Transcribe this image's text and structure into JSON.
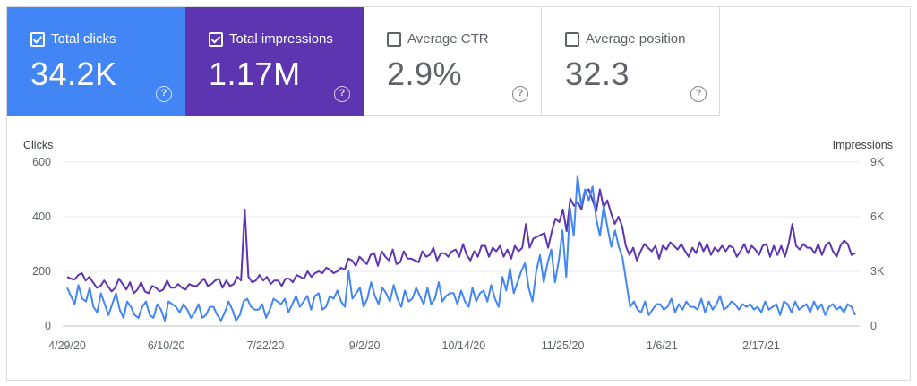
{
  "metrics": [
    {
      "label": "Total clicks",
      "value": "34.2K",
      "checked": true,
      "color": "#4285f4"
    },
    {
      "label": "Total impressions",
      "value": "1.17M",
      "checked": true,
      "color": "#5e35b1"
    },
    {
      "label": "Average CTR",
      "value": "2.9%",
      "checked": false,
      "color": "#ffffff"
    },
    {
      "label": "Average position",
      "value": "32.3",
      "checked": false,
      "color": "#ffffff"
    }
  ],
  "help_icon": "help-circle-icon",
  "chart_data": {
    "type": "line",
    "left_axis_title": "Clicks",
    "right_axis_title": "Impressions",
    "left_ticks": [
      "600",
      "400",
      "200",
      "0"
    ],
    "right_ticks": [
      "9K",
      "6K",
      "3K",
      "0"
    ],
    "left_ylim": [
      0,
      600
    ],
    "right_ylim": [
      0,
      9000
    ],
    "x_ticks": [
      "4/29/20",
      "6/10/20",
      "7/22/20",
      "9/2/20",
      "10/14/20",
      "11/25/20",
      "1/6/21",
      "2/17/21"
    ],
    "grid": true,
    "series": [
      {
        "axis": "right",
        "color": "#5e35b1",
        "values": [
          2700,
          2600,
          2550,
          2800,
          2900,
          2500,
          2700,
          2400,
          2100,
          2200,
          2500,
          2200,
          1900,
          2100,
          2600,
          2300,
          2000,
          2400,
          1800,
          2000,
          2400,
          1900,
          1800,
          2200,
          2100,
          1900,
          2000,
          2500,
          2100,
          2100,
          2300,
          2100,
          2000,
          2300,
          2200,
          2200,
          2400,
          2600,
          2200,
          2300,
          2500,
          2600,
          2100,
          2500,
          2200,
          2300,
          2700,
          2500,
          6400,
          2700,
          2400,
          2500,
          2800,
          2500,
          2700,
          2300,
          2500,
          2500,
          2200,
          2600,
          2600,
          2400,
          2800,
          2700,
          2600,
          3000,
          2700,
          2900,
          3000,
          2900,
          3200,
          3100,
          2900,
          3000,
          3200,
          3100,
          3700,
          3600,
          3300,
          3800,
          3600,
          3400,
          3900,
          4000,
          3300,
          4100,
          3800,
          3600,
          4200,
          3400,
          3500,
          4100,
          3700,
          3700,
          3600,
          3500,
          4100,
          3800,
          3900,
          4300,
          3600,
          4000,
          4000,
          3800,
          4100,
          4200,
          3800,
          4500,
          3900,
          3600,
          4100,
          3800,
          4400,
          4400,
          3800,
          4300,
          4100,
          4400,
          3800,
          4200,
          3700,
          4400,
          4100,
          4300,
          5600,
          4300,
          4800,
          4900,
          5000,
          5100,
          4300,
          5200,
          5900,
          5700,
          6400,
          5200,
          7000,
          6600,
          6800,
          6400,
          7400,
          7500,
          6900,
          6300,
          7500,
          6500,
          6900,
          6200,
          5600,
          6000,
          5500,
          4400,
          3900,
          4300,
          3600,
          4100,
          4500,
          4300,
          4100,
          4400,
          3700,
          4400,
          4200,
          4600,
          4400,
          4200,
          4500,
          4100,
          3800,
          4300,
          4000,
          4600,
          4100,
          4500,
          3900,
          4300,
          4100,
          4400,
          4100,
          4400,
          4300,
          3800,
          4100,
          4500,
          4000,
          4400,
          4200,
          3900,
          4400,
          4500,
          3800,
          4400,
          3900,
          4400,
          3800,
          4500,
          5600,
          4400,
          4200,
          4500,
          4300,
          4300,
          4000,
          4500,
          3900,
          4400,
          4600,
          4100,
          3800,
          4400,
          4700,
          4500,
          3900,
          4000
        ]
      },
      {
        "axis": "left",
        "color": "#4285f4",
        "values": [
          140,
          110,
          80,
          150,
          100,
          90,
          140,
          70,
          50,
          120,
          80,
          40,
          80,
          120,
          60,
          30,
          90,
          70,
          40,
          30,
          70,
          90,
          40,
          30,
          80,
          60,
          20,
          90,
          80,
          70,
          50,
          80,
          60,
          30,
          50,
          80,
          30,
          40,
          70,
          70,
          40,
          20,
          50,
          90,
          60,
          20,
          40,
          90,
          100,
          70,
          60,
          60,
          80,
          30,
          60,
          100,
          90,
          80,
          100,
          50,
          80,
          110,
          70,
          90,
          110,
          60,
          110,
          120,
          60,
          70,
          110,
          100,
          130,
          90,
          70,
          200,
          100,
          120,
          140,
          70,
          100,
          160,
          110,
          80,
          140,
          120,
          90,
          150,
          100,
          70,
          130,
          90,
          100,
          140,
          110,
          80,
          140,
          80,
          100,
          160,
          90,
          110,
          120,
          120,
          80,
          130,
          90,
          70,
          140,
          90,
          120,
          130,
          90,
          150,
          100,
          70,
          180,
          130,
          210,
          120,
          160,
          200,
          230,
          140,
          90,
          200,
          260,
          160,
          230,
          280,
          160,
          240,
          350,
          180,
          430,
          330,
          550,
          440,
          500,
          460,
          510,
          390,
          330,
          440,
          360,
          290,
          350,
          290,
          250,
          160,
          70,
          90,
          60,
          50,
          90,
          40,
          60,
          80,
          80,
          60,
          70,
          100,
          50,
          80,
          60,
          90,
          70,
          70,
          60,
          100,
          50,
          90,
          60,
          80,
          110,
          60,
          70,
          90,
          80,
          60,
          80,
          70,
          80,
          60,
          70,
          50,
          90,
          60,
          70,
          80,
          40,
          90,
          80,
          50,
          90,
          60,
          70,
          80,
          50,
          90,
          60,
          80,
          40,
          70,
          80,
          60,
          70,
          50,
          80,
          70,
          40
        ]
      }
    ]
  }
}
